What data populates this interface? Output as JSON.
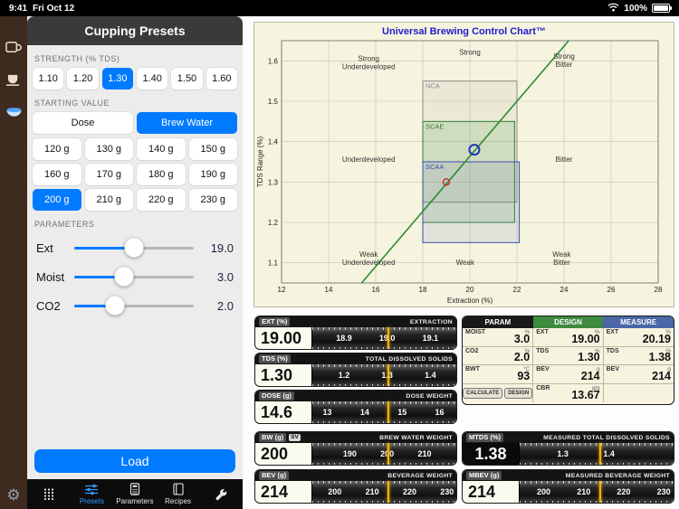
{
  "status_bar": {
    "time": "9:41",
    "date": "Fri Oct 12",
    "battery": "100%"
  },
  "mode_rail": {
    "modes": [
      {
        "id": "drip",
        "icon": "coffee-mug-icon",
        "active": false
      },
      {
        "id": "espresso",
        "icon": "espresso-cup-icon",
        "active": false
      },
      {
        "id": "cupping",
        "icon": "cupping-bowl-icon",
        "active": true
      }
    ],
    "settings_icon": "gear-icon"
  },
  "sidebar": {
    "title": "Cupping Presets",
    "strength": {
      "label": "STRENGTH (% TDS)",
      "options": [
        "1.10",
        "1.20",
        "1.30",
        "1.40",
        "1.50",
        "1.60"
      ],
      "selected": "1.30"
    },
    "starting_value": {
      "label": "STARTING VALUE",
      "modes": [
        "Dose",
        "Brew Water"
      ],
      "selected_mode": "Brew Water",
      "weights": [
        "120 g",
        "130 g",
        "140 g",
        "150 g",
        "160 g",
        "170 g",
        "180 g",
        "190 g",
        "200 g",
        "210 g",
        "220 g",
        "230 g"
      ],
      "selected_weight": "200 g"
    },
    "parameters": {
      "label": "PARAMETERS",
      "sliders": [
        {
          "name": "Ext",
          "value": "19.0",
          "pct": 50
        },
        {
          "name": "Moist",
          "value": "3.0",
          "pct": 42
        },
        {
          "name": "CO2",
          "value": "2.0",
          "pct": 34
        }
      ]
    },
    "load_button": "Load"
  },
  "tab_bar": {
    "items": [
      {
        "id": "keypad",
        "label": "",
        "icon": "keypad",
        "active": false
      },
      {
        "id": "presets",
        "label": "Presets",
        "icon": "sliders",
        "active": true
      },
      {
        "id": "parameters",
        "label": "Parameters",
        "icon": "calculator",
        "active": false
      },
      {
        "id": "recipes",
        "label": "Recipes",
        "icon": "book",
        "active": false
      },
      {
        "id": "tools",
        "label": "",
        "icon": "wrench",
        "active": false
      }
    ]
  },
  "chart_data": {
    "type": "scatter",
    "title": "Universal Brewing Control Chart™",
    "title_color": "#1d1dc8",
    "xlabel": "Extraction (%)",
    "ylabel": "TDS Range (%)",
    "xlim": [
      12,
      28
    ],
    "ylim": [
      1.05,
      1.65
    ],
    "xticks": [
      12,
      14,
      16,
      18,
      20,
      22,
      24,
      26,
      28
    ],
    "yticks": [
      1.1,
      1.2,
      1.3,
      1.4,
      1.5,
      1.6
    ],
    "grid": true,
    "regions": [
      {
        "name": "NCA",
        "x0": 18,
        "x1": 22,
        "y0": 1.25,
        "y1": 1.55,
        "color": "#8a8a8a",
        "fill": "rgba(140,140,140,0.10)"
      },
      {
        "name": "SCAE",
        "x0": 18,
        "x1": 21.9,
        "y0": 1.2,
        "y1": 1.45,
        "color": "#2e7d32",
        "fill": "rgba(90,160,90,0.18)"
      },
      {
        "name": "SCAA",
        "x0": 18,
        "x1": 22.1,
        "y0": 1.15,
        "y1": 1.35,
        "color": "#3a4ab0",
        "fill": "rgba(80,100,200,0.12)"
      }
    ],
    "ratio_line": {
      "x0": 15.4,
      "y0": 1.05,
      "x1": 24.2,
      "y1": 1.65,
      "color": "#2e8b2e"
    },
    "points": [
      {
        "name": "design-point",
        "x": 19.0,
        "y": 1.3,
        "color": "#cc3333",
        "r": 3.5,
        "stroke_width": 1.5
      },
      {
        "name": "measured-point",
        "x": 20.19,
        "y": 1.38,
        "color": "#2233bb",
        "r": 5.5,
        "stroke_width": 2
      }
    ],
    "labels": [
      {
        "text": "Strong\nUnderdeveloped",
        "x": 15.7,
        "y": 1.6
      },
      {
        "text": "Strong",
        "x": 20.0,
        "y": 1.615
      },
      {
        "text": "Strong\nBitter",
        "x": 24.0,
        "y": 1.605
      },
      {
        "text": "Underdeveloped",
        "x": 15.7,
        "y": 1.35
      },
      {
        "text": "Bitter",
        "x": 24.0,
        "y": 1.35
      },
      {
        "text": "Weak\nUnderdeveloped",
        "x": 15.7,
        "y": 1.115
      },
      {
        "text": "Weak",
        "x": 19.8,
        "y": 1.095
      },
      {
        "text": "Weak\nBitter",
        "x": 23.9,
        "y": 1.115
      }
    ]
  },
  "readouts": [
    {
      "id": "ext",
      "label": "EXT (%)",
      "badge": "",
      "caption": "EXTRACTION",
      "value": "19.00",
      "value_num": 19.0,
      "dark_value": false,
      "tape": {
        "density": 300,
        "numbers": [
          18.9,
          19.0,
          19.1
        ],
        "labels": [
          "18.9",
          "19.0",
          "19.1"
        ]
      }
    },
    {
      "id": "tds",
      "label": "TDS (%)",
      "badge": "",
      "caption": "TOTAL DISSOLVED SOLIDS",
      "value": "1.30",
      "value_num": 1.3,
      "dark_value": false,
      "tape": {
        "density": 300,
        "numbers": [
          1.2,
          1.3,
          1.4
        ],
        "labels": [
          "1.2",
          "1.3",
          "1.4"
        ]
      }
    },
    {
      "id": "dose",
      "label": "DOSE (g)",
      "badge": "",
      "caption": "DOSE WEIGHT",
      "value": "14.6",
      "value_num": 14.6,
      "dark_value": false,
      "tape": {
        "density": 26,
        "numbers": [
          13,
          14,
          15,
          16
        ],
        "labels": [
          "13",
          "14",
          "15",
          "16"
        ]
      }
    },
    {
      "id": "bw",
      "label": "BW (g)",
      "badge": "SV",
      "caption": "BREW WATER WEIGHT",
      "value": "200",
      "value_num": 200,
      "dark_value": false,
      "tape": {
        "density": 2.6,
        "numbers": [
          190,
          200,
          210
        ],
        "labels": [
          "190",
          "200",
          "210"
        ]
      }
    },
    {
      "id": "bev",
      "label": "BEV (g)",
      "badge": "",
      "caption": "BEVERAGE WEIGHT",
      "value": "214",
      "value_num": 214,
      "dark_value": false,
      "tape": {
        "density": 2.6,
        "numbers": [
          200,
          210,
          220,
          230
        ],
        "labels": [
          "200",
          "210",
          "220",
          "230"
        ]
      }
    },
    {
      "id": "mtds",
      "label": "MTDS (%)",
      "badge": "",
      "caption": "MEASURED TOTAL DISSOLVED SOLIDS",
      "value": "1.38",
      "value_num": 1.38,
      "dark_value": true,
      "tape": {
        "density": 300,
        "numbers": [
          1.3,
          1.4
        ],
        "labels": [
          "1.3",
          "1.4"
        ]
      }
    },
    {
      "id": "mbev",
      "label": "MBEV (g)",
      "badge": "",
      "caption": "MEASURED BEVERAGE WEIGHT",
      "value": "214",
      "value_num": 214,
      "dark_value": false,
      "tape": {
        "density": 2.6,
        "numbers": [
          200,
          210,
          220,
          230
        ],
        "labels": [
          "200",
          "210",
          "220",
          "230"
        ]
      }
    }
  ],
  "param_table": {
    "headers": [
      "PARAM",
      "DESIGN",
      "MEASURE"
    ],
    "rows": [
      [
        {
          "label": "MOIST",
          "unit": "%",
          "value": "3.0"
        },
        {
          "label": "EXT",
          "unit": "%",
          "value": "19.00"
        },
        {
          "label": "EXT",
          "unit": "%",
          "value": "20.19"
        }
      ],
      [
        {
          "label": "CO2",
          "unit": "%",
          "value": "2.0"
        },
        {
          "label": "TDS",
          "unit": "%",
          "value": "1.30"
        },
        {
          "label": "TDS",
          "unit": "%",
          "value": "1.38"
        }
      ],
      [
        {
          "label": "BWT",
          "unit": "°C",
          "value": "93"
        },
        {
          "label": "BEV",
          "unit": "g",
          "value": "214"
        },
        {
          "label": "BEV",
          "unit": "g",
          "value": "214"
        }
      ],
      [
        {
          "buttons": [
            "CALCULATE",
            "DESIGN"
          ]
        },
        {
          "label": "CBR",
          "unit": "g/g",
          "value": "13.67"
        },
        {}
      ]
    ]
  }
}
